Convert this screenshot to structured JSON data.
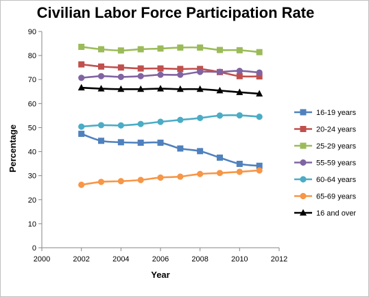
{
  "chart_data": {
    "type": "line",
    "title": "Civilian Labor Force Participation Rate",
    "xlabel": "Year",
    "ylabel": "Percentage",
    "xlim": [
      2000,
      2012
    ],
    "ylim": [
      0,
      90
    ],
    "x_ticks": [
      2000,
      2002,
      2004,
      2006,
      2008,
      2010,
      2012
    ],
    "y_ticks": [
      0,
      10,
      20,
      30,
      40,
      50,
      60,
      70,
      80,
      90
    ],
    "grid": false,
    "legend_position": "right",
    "x": [
      2002,
      2003,
      2004,
      2005,
      2006,
      2007,
      2008,
      2009,
      2010,
      2011
    ],
    "series": [
      {
        "name": "16-19 years",
        "color": "#4f81bd",
        "marker": "square",
        "values": [
          47.4,
          44.5,
          43.9,
          43.7,
          43.7,
          41.3,
          40.2,
          37.5,
          34.9,
          34.1
        ]
      },
      {
        "name": "20-24 years",
        "color": "#c0504d",
        "marker": "square",
        "values": [
          76.3,
          75.4,
          75.0,
          74.6,
          74.6,
          74.4,
          74.4,
          73.1,
          71.4,
          71.3
        ]
      },
      {
        "name": "25-29 years",
        "color": "#9bbb59",
        "marker": "square",
        "values": [
          83.6,
          82.6,
          82.1,
          82.6,
          82.9,
          83.3,
          83.3,
          82.3,
          82.2,
          81.4
        ]
      },
      {
        "name": "55-59 years",
        "color": "#8064a2",
        "marker": "circle",
        "values": [
          70.7,
          71.4,
          71.1,
          71.4,
          72.0,
          72.0,
          73.2,
          73.2,
          73.6,
          72.9
        ]
      },
      {
        "name": "60-64 years",
        "color": "#4bacc6",
        "marker": "circle",
        "values": [
          50.4,
          51.0,
          50.9,
          51.5,
          52.4,
          53.2,
          54.0,
          55.0,
          55.1,
          54.5
        ]
      },
      {
        "name": "65-69 years",
        "color": "#f79646",
        "marker": "circle",
        "values": [
          26.2,
          27.4,
          27.7,
          28.2,
          29.2,
          29.6,
          30.7,
          31.1,
          31.6,
          32.2
        ]
      },
      {
        "name": "16 and over",
        "color": "#000000",
        "marker": "triangle",
        "values": [
          66.6,
          66.2,
          66.0,
          66.0,
          66.2,
          66.0,
          66.0,
          65.4,
          64.7,
          64.1
        ]
      }
    ]
  }
}
